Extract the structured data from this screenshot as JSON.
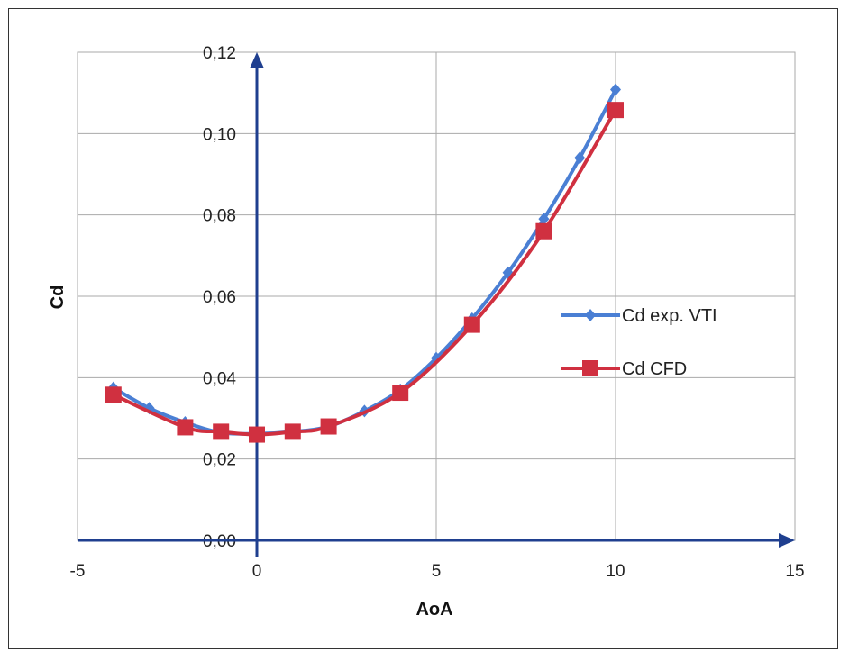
{
  "chart_data": {
    "type": "line",
    "xlabel": "AoA",
    "ylabel": "Cd",
    "xlim": [
      -5,
      15
    ],
    "ylim": [
      0,
      0.12
    ],
    "x_ticks": [
      "-5",
      "0",
      "5",
      "10",
      "15"
    ],
    "x_tick_values": [
      -5,
      0,
      5,
      10,
      15
    ],
    "y_ticks": [
      "0,00",
      "0,02",
      "0,04",
      "0,06",
      "0,08",
      "0,10",
      "0,12"
    ],
    "y_tick_values": [
      0,
      0.02,
      0.04,
      0.06,
      0.08,
      0.1,
      0.12
    ],
    "grid": true,
    "legend_position": "right",
    "series": [
      {
        "name": "Cd exp. VTI",
        "color": "#4a7fd4",
        "marker": "diamond",
        "x": [
          -4,
          -3,
          -2,
          -1,
          0,
          1,
          2,
          3,
          4,
          5,
          6,
          7,
          8,
          9,
          10
        ],
        "y": [
          0.0375,
          0.0325,
          0.029,
          0.0265,
          0.0262,
          0.0267,
          0.028,
          0.0318,
          0.037,
          0.0448,
          0.0545,
          0.0658,
          0.079,
          0.094,
          0.1108
        ]
      },
      {
        "name": "Cd CFD",
        "color": "#d03040",
        "marker": "square",
        "x": [
          -4,
          -2,
          -1,
          0,
          1,
          2,
          4,
          6,
          8,
          10
        ],
        "y": [
          0.0358,
          0.0278,
          0.0267,
          0.026,
          0.0267,
          0.028,
          0.0363,
          0.053,
          0.076,
          0.1058
        ]
      }
    ]
  }
}
